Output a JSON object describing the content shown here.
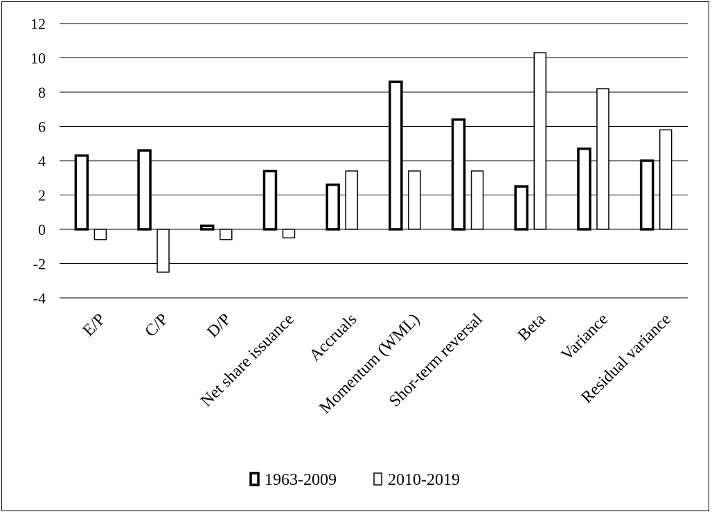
{
  "chart_data": {
    "type": "bar",
    "title": "",
    "xlabel": "",
    "ylabel": "",
    "ylim": [
      -4,
      12
    ],
    "yticks": [
      -4,
      -2,
      0,
      2,
      4,
      6,
      8,
      10,
      12
    ],
    "grid": true,
    "legend_position": "bottom",
    "categories": [
      "E/P",
      "C/P",
      "D/P",
      "Net share issuance",
      "Accruals",
      "Momentum (WML)",
      "Shor-term reversal",
      "Beta",
      "Variance",
      "Residual variance"
    ],
    "series": [
      {
        "name": "1963-2009",
        "values": [
          4.3,
          4.6,
          0.2,
          3.4,
          2.6,
          8.6,
          6.4,
          2.5,
          4.7,
          4.0
        ]
      },
      {
        "name": "2010-2019",
        "values": [
          -0.6,
          -2.5,
          -0.6,
          -0.5,
          3.4,
          3.4,
          3.4,
          10.3,
          8.2,
          5.8
        ]
      }
    ]
  }
}
